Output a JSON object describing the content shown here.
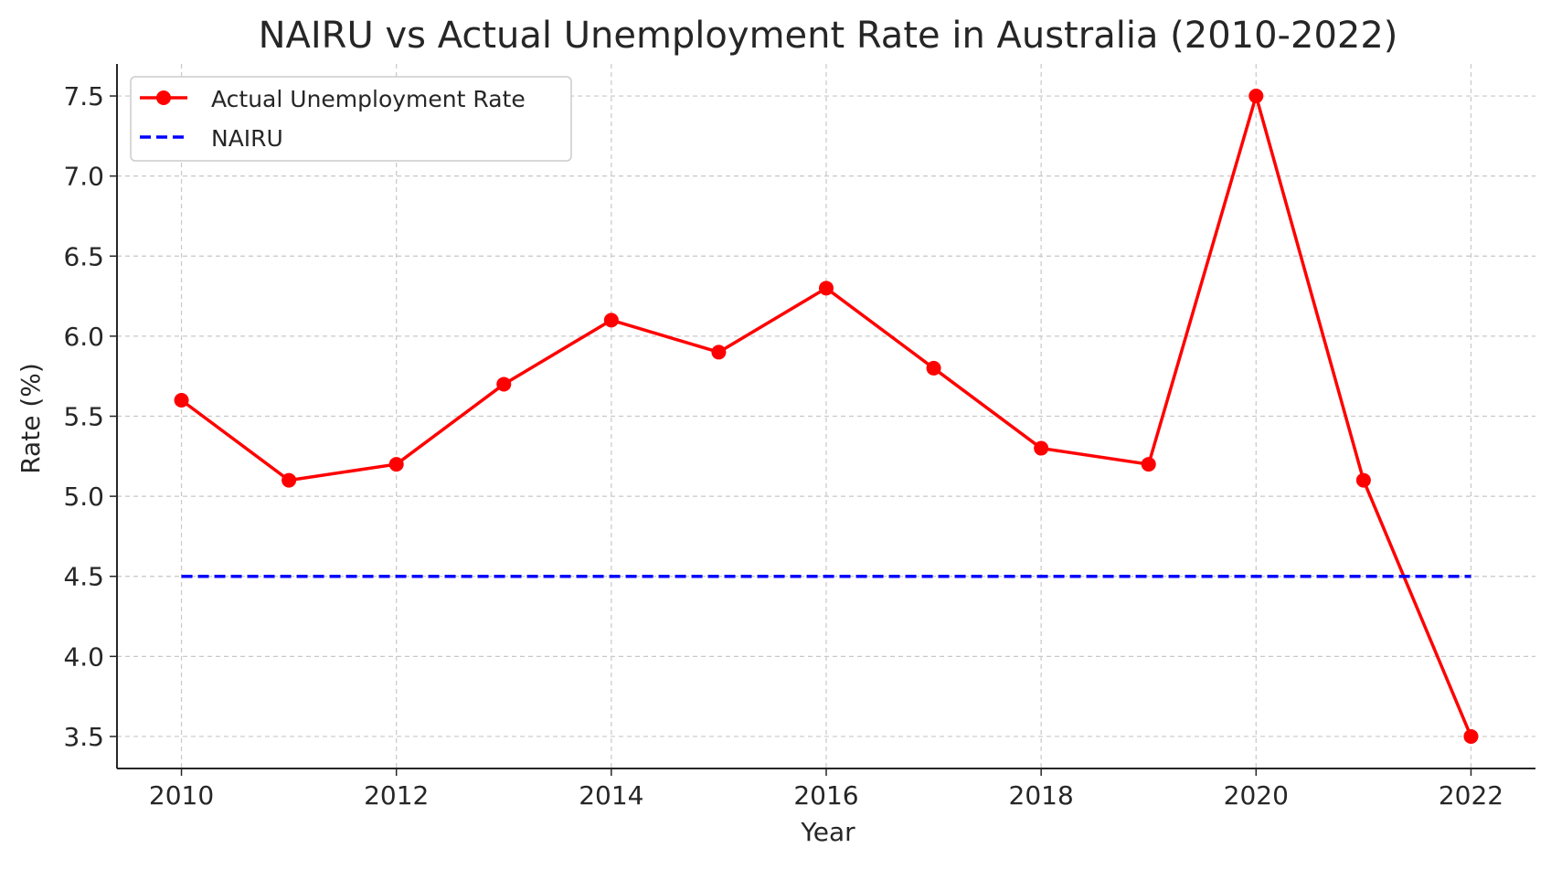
{
  "chart_data": {
    "type": "line",
    "title": "NAIRU vs Actual Unemployment Rate in Australia (2010-2022)",
    "xlabel": "Year",
    "ylabel": "Rate (%)",
    "x": [
      2010,
      2011,
      2012,
      2013,
      2014,
      2015,
      2016,
      2017,
      2018,
      2019,
      2020,
      2021,
      2022
    ],
    "xlim": [
      2009.4,
      2022.6
    ],
    "ylim": [
      3.3,
      7.7
    ],
    "x_ticks": [
      "2010",
      "2012",
      "2014",
      "2016",
      "2018",
      "2020",
      "2022"
    ],
    "y_ticks": [
      "3.5",
      "4.0",
      "4.5",
      "5.0",
      "5.5",
      "6.0",
      "6.5",
      "7.0",
      "7.5"
    ],
    "grid": true,
    "legend_position": "top-left",
    "series": [
      {
        "name": "Actual Unemployment Rate",
        "style": "solid-with-markers",
        "color": "#ff0000",
        "values": [
          5.6,
          5.1,
          5.2,
          5.7,
          6.1,
          5.9,
          6.3,
          5.8,
          5.3,
          5.2,
          7.5,
          5.1,
          3.5
        ]
      },
      {
        "name": "NAIRU",
        "style": "dashed",
        "color": "#0000ff",
        "values": [
          4.5,
          4.5,
          4.5,
          4.5,
          4.5,
          4.5,
          4.5,
          4.5,
          4.5,
          4.5,
          4.5,
          4.5,
          4.5
        ]
      }
    ]
  }
}
